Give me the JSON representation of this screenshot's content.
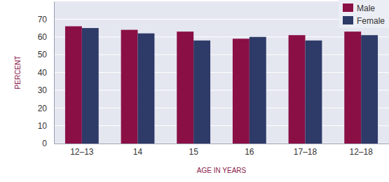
{
  "chart_data": {
    "type": "bar",
    "x_label": "AGE IN YEARS",
    "y_label": "PERCENT",
    "categories": [
      "12–13",
      "14",
      "15",
      "16",
      "17–18",
      "12–18"
    ],
    "series": [
      {
        "name": "Male",
        "color": "#8a0f45",
        "values": [
          66,
          64,
          63,
          59,
          61,
          63
        ]
      },
      {
        "name": "Female",
        "color": "#2e3a68",
        "values": [
          65,
          62,
          58,
          60,
          58,
          61
        ]
      }
    ],
    "ylim": [
      0,
      80
    ],
    "yticks": [
      0,
      10,
      20,
      30,
      40,
      50,
      60,
      70
    ],
    "grid": true,
    "legend": "top-right"
  }
}
